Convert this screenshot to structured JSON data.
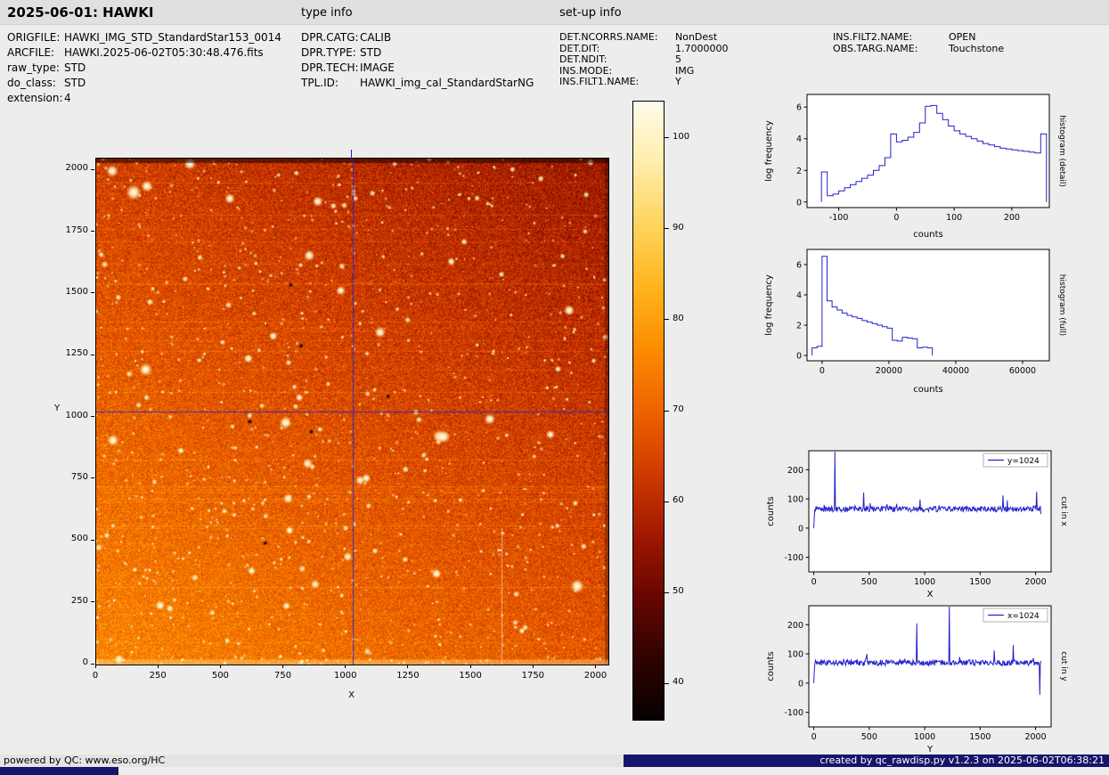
{
  "header": {
    "title": "2025-06-01: HAWKI",
    "type_info_heading": "type info",
    "setup_info_heading": "set-up info"
  },
  "file_info": {
    "rows": [
      {
        "label": "ORIGFILE:",
        "value": "HAWKI_IMG_STD_StandardStar153_0014"
      },
      {
        "label": "ARCFILE:",
        "value": "HAWKI.2025-06-02T05:30:48.476.fits"
      },
      {
        "label": "raw_type:",
        "value": "STD"
      },
      {
        "label": "do_class:",
        "value": "STD"
      },
      {
        "label": "extension:",
        "value": "4"
      }
    ]
  },
  "type_info": {
    "rows": [
      {
        "label": "DPR.CATG:",
        "value": "CALIB"
      },
      {
        "label": "DPR.TYPE:",
        "value": "STD"
      },
      {
        "label": "DPR.TECH:",
        "value": "IMAGE"
      },
      {
        "label": "TPL.ID:",
        "value": "HAWKI_img_cal_StandardStarNG"
      }
    ]
  },
  "setup_info": {
    "col1": [
      {
        "label": "DET.NCORRS.NAME:",
        "value": "NonDest"
      },
      {
        "label": "DET.DIT:",
        "value": "1.7000000"
      },
      {
        "label": "DET.NDIT:",
        "value": "5"
      },
      {
        "label": "INS.MODE:",
        "value": "IMG"
      },
      {
        "label": "INS.FILT1.NAME:",
        "value": "Y"
      }
    ],
    "col2": [
      {
        "label": "INS.FILT2.NAME:",
        "value": "OPEN"
      },
      {
        "label": "OBS.TARG.NAME:",
        "value": "Touchstone"
      }
    ]
  },
  "footer": {
    "left": "powered by QC: www.eso.org/HC",
    "right": "created by qc_rawdisp.py v1.2.3 on 2025-06-02T06:38:21",
    "accent_color": "#15156b"
  },
  "chart_data": [
    {
      "id": "raw-image",
      "type": "heatmap",
      "description": "HAWKI raw standard-star exposure: dense star field on hot-colormap background, brighter toward lower left, dark top edge, blue crosshair marking x=1024 / y=1024",
      "xlabel": "X",
      "ylabel": "Y",
      "xlim": [
        0,
        2048
      ],
      "ylim": [
        0,
        2048
      ],
      "xticks": [
        0,
        250,
        500,
        750,
        1000,
        1250,
        1500,
        1750,
        2000
      ],
      "yticks": [
        0,
        250,
        500,
        750,
        1000,
        1250,
        1500,
        1750,
        2000
      ],
      "colormap": "hot",
      "background_level": 65,
      "crosshair": {
        "x": 1024,
        "y": 1024,
        "color": "#2222cc"
      },
      "colorbar": {
        "ticks": [
          40,
          50,
          60,
          70,
          80,
          90,
          100
        ],
        "vmin": 36,
        "vmax": 104
      }
    },
    {
      "id": "hist-detail",
      "type": "step-histogram",
      "right_label": "histogram (detail)",
      "xlabel": "counts",
      "ylabel": "log frequency",
      "xlim": [
        -155,
        265
      ],
      "ylim": [
        -0.35,
        6.8
      ],
      "xticks": [
        -100,
        0,
        100,
        200
      ],
      "yticks": [
        0,
        2,
        4,
        6
      ],
      "line_color": "#2222cc",
      "bin_start": -130,
      "bin_width": 10,
      "values": [
        1.9,
        0.4,
        0.5,
        0.7,
        0.9,
        1.1,
        1.3,
        1.5,
        1.7,
        2.0,
        2.3,
        2.8,
        4.3,
        3.8,
        3.9,
        4.1,
        4.4,
        5.0,
        6.05,
        6.1,
        5.6,
        5.2,
        4.8,
        4.5,
        4.3,
        4.15,
        4.0,
        3.85,
        3.7,
        3.6,
        3.5,
        3.4,
        3.35,
        3.3,
        3.25,
        3.2,
        3.15,
        3.1,
        4.3
      ]
    },
    {
      "id": "hist-full",
      "type": "step-histogram",
      "right_label": "histogram (full)",
      "xlabel": "counts",
      "ylabel": "log frequency",
      "xlim": [
        -4500,
        68000
      ],
      "ylim": [
        -0.35,
        7.0
      ],
      "xticks": [
        0,
        20000,
        40000,
        60000
      ],
      "yticks": [
        0,
        2,
        4,
        6
      ],
      "line_color": "#2222cc",
      "bin_start": -3000,
      "bin_width": 1500,
      "values": [
        0.5,
        0.6,
        6.55,
        3.6,
        3.2,
        3.0,
        2.8,
        2.65,
        2.55,
        2.45,
        2.3,
        2.2,
        2.1,
        2.0,
        1.9,
        1.8,
        1.0,
        0.95,
        1.2,
        1.15,
        1.1,
        0.5,
        0.55,
        0.5
      ]
    },
    {
      "id": "cut-x",
      "type": "noisy-line",
      "right_label": "cut in x",
      "xlabel": "X",
      "ylabel": "counts",
      "legend": "y=1024",
      "xlim": [
        -45,
        2140
      ],
      "ylim": [
        -150,
        265
      ],
      "xticks": [
        0,
        500,
        1000,
        1500,
        2000
      ],
      "yticks": [
        -100,
        0,
        100,
        200
      ],
      "line_color": "#2222cc",
      "baseline": 65,
      "noise_amplitude": 9,
      "n_points": 420,
      "seed": 12345,
      "edge_start_value": 0,
      "spikes": [
        {
          "x": 190,
          "value": 262
        },
        {
          "x": 450,
          "value": 122
        },
        {
          "x": 960,
          "value": 98
        },
        {
          "x": 1705,
          "value": 112
        },
        {
          "x": 1745,
          "value": 95
        },
        {
          "x": 2010,
          "value": 125
        },
        {
          "x": 2046,
          "value": 48
        }
      ]
    },
    {
      "id": "cut-y",
      "type": "noisy-line",
      "right_label": "cut in y",
      "xlabel": "Y",
      "ylabel": "counts",
      "legend": "x=1024",
      "xlim": [
        -45,
        2140
      ],
      "ylim": [
        -150,
        265
      ],
      "xticks": [
        0,
        500,
        1000,
        1500,
        2000
      ],
      "yticks": [
        -100,
        0,
        100,
        200
      ],
      "line_color": "#2222cc",
      "baseline": 70,
      "noise_amplitude": 10,
      "n_points": 420,
      "seed": 98765,
      "edge_start_value": 0,
      "spikes": [
        {
          "x": 480,
          "value": 100
        },
        {
          "x": 930,
          "value": 205
        },
        {
          "x": 1220,
          "value": 262
        },
        {
          "x": 1630,
          "value": 112
        },
        {
          "x": 1800,
          "value": 130
        },
        {
          "x": 2040,
          "value": -40
        }
      ]
    }
  ]
}
